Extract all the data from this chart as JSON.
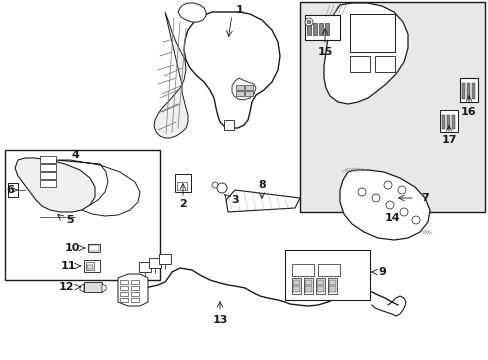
{
  "bg_color": "#ffffff",
  "outer_bg": "#f0f0f0",
  "line_color": "#1a1a1a",
  "gray_fill": "#e8e8e8",
  "light_gray": "#f5f5f5",
  "figsize": [
    4.89,
    3.6
  ],
  "dpi": 100
}
